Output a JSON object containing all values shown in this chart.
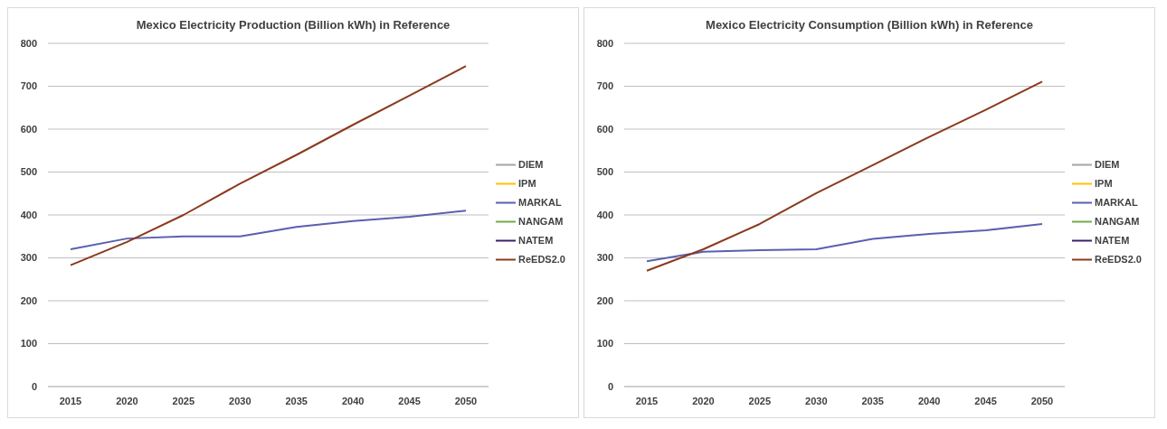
{
  "chart_data": [
    {
      "type": "line",
      "title": "Mexico Electricity Production (Billion kWh) in Reference",
      "categories": [
        "2015",
        "2020",
        "2025",
        "2030",
        "2035",
        "2040",
        "2045",
        "2050"
      ],
      "ylim": [
        0,
        800
      ],
      "yticks": [
        0,
        100,
        200,
        300,
        400,
        500,
        600,
        700,
        800
      ],
      "grid": "y",
      "legend": "right",
      "series": [
        {
          "name": "DIEM",
          "color": "#a5a5a5",
          "values": [
            null,
            null,
            null,
            null,
            null,
            null,
            null,
            null
          ]
        },
        {
          "name": "IPM",
          "color": "#ffc000",
          "values": [
            null,
            null,
            null,
            null,
            null,
            null,
            null,
            null
          ]
        },
        {
          "name": "MARKAL",
          "color": "#5a5fb0",
          "values": [
            320,
            345,
            350,
            350,
            372,
            386,
            396,
            410
          ]
        },
        {
          "name": "NANGAM",
          "color": "#70ad47",
          "values": [
            null,
            null,
            null,
            null,
            null,
            null,
            null,
            null
          ]
        },
        {
          "name": "NATEM",
          "color": "#3b1f6b",
          "values": [
            null,
            null,
            null,
            null,
            null,
            null,
            null,
            null
          ]
        },
        {
          "name": "ReEDS2.0",
          "color": "#8b3a1e",
          "values": [
            283,
            337,
            400,
            473,
            540,
            610,
            678,
            747
          ]
        }
      ]
    },
    {
      "type": "line",
      "title": "Mexico Electricity Consumption (Billion kWh) in Reference",
      "categories": [
        "2015",
        "2020",
        "2025",
        "2030",
        "2035",
        "2040",
        "2045",
        "2050"
      ],
      "ylim": [
        0,
        800
      ],
      "yticks": [
        0,
        100,
        200,
        300,
        400,
        500,
        600,
        700,
        800
      ],
      "grid": "y",
      "legend": "right",
      "series": [
        {
          "name": "DIEM",
          "color": "#a5a5a5",
          "values": [
            null,
            null,
            null,
            null,
            null,
            null,
            null,
            null
          ]
        },
        {
          "name": "IPM",
          "color": "#ffc000",
          "values": [
            null,
            null,
            null,
            null,
            null,
            null,
            null,
            null
          ]
        },
        {
          "name": "MARKAL",
          "color": "#5a5fb0",
          "values": [
            292,
            314,
            318,
            320,
            344,
            356,
            364,
            379
          ]
        },
        {
          "name": "NANGAM",
          "color": "#70ad47",
          "values": [
            null,
            null,
            null,
            null,
            null,
            null,
            null,
            null
          ]
        },
        {
          "name": "NATEM",
          "color": "#3b1f6b",
          "values": [
            null,
            null,
            null,
            null,
            null,
            null,
            null,
            null
          ]
        },
        {
          "name": "ReEDS2.0",
          "color": "#8b3a1e",
          "values": [
            270,
            320,
            379,
            451,
            516,
            582,
            645,
            711
          ]
        }
      ]
    }
  ]
}
